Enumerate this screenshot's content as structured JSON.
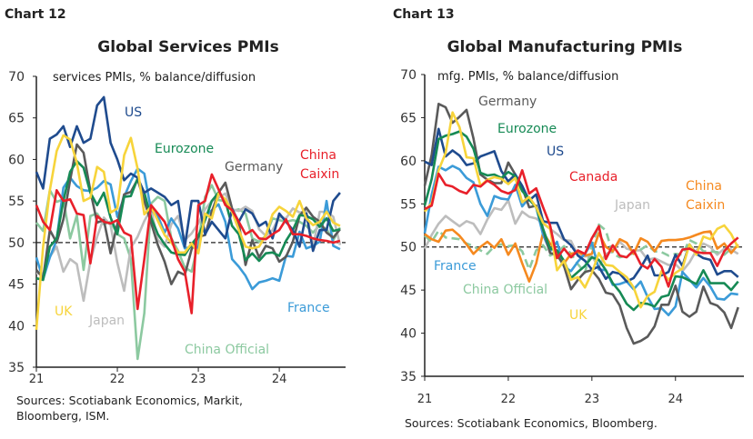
{
  "chart_data": [
    {
      "type": "line",
      "chart_number": "Chart 12",
      "title": "Global Services PMIs",
      "subtitle": "services PMIs, % balance/diffusion",
      "ylim": [
        35,
        70
      ],
      "yticks": [
        "70",
        "65",
        "60",
        "55",
        "50",
        "45",
        "40",
        "35"
      ],
      "xticks": [
        "21",
        "22",
        "23",
        "24"
      ],
      "reference_line": 50,
      "source": [
        "Sources: Scotiabank Economics, Markit,",
        "Bloomberg, ISM."
      ],
      "series": [
        {
          "name": "China Official",
          "color": "#8cc9a0",
          "dashed": false,
          "values": [
            52.4,
            51.4,
            56.3,
            54.9,
            55.2,
            50.5,
            53.3,
            46.7,
            53.2,
            53.5,
            52.2,
            52.5,
            51,
            50.5,
            48,
            36,
            41.5,
            54.7,
            55.5,
            55,
            50.5,
            49,
            47,
            46.5,
            50,
            55.5,
            56.9,
            55.1,
            55,
            53.8,
            54,
            53.5,
            50.5,
            50.1,
            50.8,
            52.9,
            52.7,
            52.5,
            52.7,
            52.5,
            52,
            51.2,
            52.1,
            51.6,
            50.3,
            51.8
          ]
        },
        {
          "name": "Japan",
          "color": "#bdbdbd",
          "dashed": false,
          "values": [
            46.3,
            46.3,
            48.3,
            49.5,
            46.5,
            48,
            47.4,
            43,
            47.8,
            50.7,
            53,
            52.1,
            47.6,
            44.2,
            49.4,
            50.7,
            52.6,
            54,
            50.3,
            49.5,
            52.2,
            53.2,
            50.3,
            51.1,
            52.3,
            54,
            55,
            55.4,
            55.9,
            54,
            53.8,
            54.3,
            53.8,
            51.6,
            50.8,
            51.5,
            53.1,
            52.9,
            54.1,
            53.6,
            53.8,
            49.4,
            53.7,
            53.7,
            53.1,
            49.7
          ]
        },
        {
          "name": "France",
          "color": "#3b9bd8",
          "dashed": false,
          "values": [
            48.2,
            45.6,
            48.2,
            50.3,
            56.6,
            57.8,
            56.8,
            56.3,
            56.2,
            56.6,
            57.4,
            57,
            53.1,
            55.5,
            57.4,
            58.9,
            58.3,
            53.9,
            53.2,
            51.2,
            52.9,
            51.7,
            49.3,
            49.5,
            49.4,
            53.1,
            53.9,
            54.6,
            52.5,
            48,
            47.1,
            46,
            44.4,
            45.2,
            45.4,
            45.7,
            45.4,
            48.4,
            48.3,
            51.3,
            49.3,
            49.6,
            50.1,
            55,
            49.6,
            49.2
          ]
        },
        {
          "name": "Germany",
          "color": "#5a5a5a",
          "dashed": false,
          "values": [
            46.7,
            45.7,
            51.5,
            50,
            52.8,
            57.5,
            61.8,
            60.8,
            56.2,
            52.4,
            52.7,
            48.7,
            52.2,
            55.8,
            56.1,
            57.6,
            55,
            52.4,
            49.7,
            47.7,
            45,
            46.5,
            46.1,
            49.2,
            50.7,
            50.9,
            53.7,
            56,
            57.2,
            54.1,
            52.3,
            47.3,
            50.3,
            48.2,
            49.6,
            49.3,
            47.7,
            48.3,
            50.1,
            53.2,
            54.2,
            53.1,
            52.5,
            51.2,
            50.6,
            51.6
          ]
        },
        {
          "name": "Eurozone",
          "color": "#168a55",
          "dashed": false,
          "values": [
            45.7,
            45.5,
            49.5,
            50.5,
            55,
            58.5,
            59.8,
            59,
            56,
            54.5,
            56,
            53,
            51,
            55.5,
            55.6,
            57.7,
            56,
            53,
            51,
            49.8,
            48.8,
            48.6,
            48.5,
            49.8,
            50.8,
            52.7,
            55,
            56,
            55,
            52,
            51,
            47.9,
            48.7,
            47.8,
            48.7,
            48.8,
            48.4,
            50.2,
            51.5,
            53.3,
            53.2,
            52.8,
            51.9,
            52.9,
            51.4,
            51.6
          ]
        },
        {
          "name": "US",
          "color": "#1f4b8e",
          "dashed": false,
          "values": [
            58.5,
            56.5,
            62.5,
            63,
            64,
            61.5,
            64,
            62,
            62.5,
            66.5,
            67.5,
            62,
            60,
            57.5,
            58.3,
            57.8,
            56,
            56.5,
            56,
            55.5,
            54.5,
            55,
            49.5,
            55,
            55,
            51,
            52.5,
            51.5,
            50.5,
            54,
            52.5,
            54,
            53.5,
            52,
            52.5,
            50.5,
            53.5,
            52.5,
            51.5,
            49.5,
            53.5,
            49,
            51.5,
            51.5,
            55,
            56
          ]
        },
        {
          "name": "UK",
          "color": "#f7d43b",
          "dashed": false,
          "values": [
            39.5,
            49.5,
            56.3,
            61,
            62.9,
            62.4,
            59.6,
            55,
            55.4,
            59.1,
            58.5,
            53.6,
            54.1,
            60.5,
            62.6,
            58.9,
            53.4,
            54.3,
            52.6,
            50.9,
            50,
            48.8,
            48.8,
            49.9,
            48.7,
            53.5,
            52.9,
            55.9,
            55.2,
            53.7,
            51.5,
            49.5,
            49.3,
            49.5,
            50.9,
            53.4,
            54.3,
            53.8,
            53.1,
            55,
            52.9,
            52.1,
            52.5,
            53.7,
            52.4,
            52
          ]
        },
        {
          "name": "China Caixin",
          "color": "#e8202a",
          "dashed": false,
          "values": [
            54.5,
            52.5,
            51.5,
            56.3,
            55,
            55.2,
            53.5,
            53.3,
            47.5,
            53.2,
            52.5,
            52.3,
            52.7,
            51.2,
            50.8,
            42,
            48,
            54.5,
            53.5,
            52.5,
            50.5,
            48,
            46.5,
            41.5,
            54.5,
            55,
            58.2,
            56.4,
            54.5,
            53.9,
            52.5,
            51,
            51.5,
            50.5,
            50.4,
            51,
            51.5,
            52.8,
            51,
            51,
            50.8,
            50.5,
            50.3,
            50.2,
            50,
            50.2
          ]
        }
      ]
    },
    {
      "type": "line",
      "chart_number": "Chart 13",
      "title": "Global Manufacturing PMIs",
      "subtitle": "mfg. PMIs, % balance/diffusion",
      "ylim": [
        35,
        70
      ],
      "yticks": [
        "70",
        "65",
        "60",
        "55",
        "50",
        "45",
        "40",
        "35"
      ],
      "xticks": [
        "21",
        "22",
        "23",
        "24"
      ],
      "reference_line": 50,
      "source": [
        "Sources: Scotiabank Economics, Bloomberg."
      ],
      "series": [
        {
          "name": "Japan",
          "color": "#bdbdbd",
          "dashed": false,
          "values": [
            49.8,
            51.4,
            52.7,
            53.6,
            53,
            52.4,
            53,
            52.7,
            51.5,
            53.2,
            54.5,
            54.3,
            55.4,
            52.7,
            54.1,
            53.5,
            53.3,
            52.7,
            52.1,
            51.5,
            50.8,
            50.7,
            49,
            48.9,
            48.9,
            47.7,
            49.2,
            49.5,
            50.6,
            49.8,
            49.6,
            49.6,
            48.5,
            48.7,
            48.3,
            47.9,
            48,
            47.2,
            48.2,
            49.6,
            50.4,
            50,
            49.1,
            49.8,
            49.7,
            49.2
          ]
        },
        {
          "name": "China Official",
          "color": "#8cc9a0",
          "dashed": true,
          "values": [
            51.3,
            50.6,
            51.9,
            51.1,
            51,
            50.9,
            50.4,
            50.1,
            49.6,
            49.2,
            50.1,
            50.3,
            50.1,
            50.2,
            49.5,
            47.4,
            49.6,
            50.2,
            49,
            49.4,
            50.1,
            49.2,
            48,
            47,
            50.1,
            52.6,
            51.9,
            49.2,
            48.8,
            49,
            49.3,
            49.7,
            50.2,
            49.5,
            49.4,
            49,
            49.2,
            49.1,
            50.8,
            50.4,
            49.5,
            49.5,
            49.4,
            49.1,
            49.8,
            50.1
          ]
        },
        {
          "name": "China Caixin",
          "color": "#f5891f",
          "dashed": false,
          "values": [
            51.5,
            50.9,
            50.6,
            51.9,
            52,
            51.3,
            50.3,
            49.2,
            50,
            50.6,
            49.9,
            50.9,
            49.1,
            50.4,
            48.1,
            46,
            48.1,
            51.7,
            50.4,
            49.5,
            48.1,
            49.2,
            49.4,
            49,
            49.2,
            51.6,
            50,
            49.5,
            50.9,
            50.5,
            49.2,
            51,
            50.6,
            49.5,
            50.7,
            50.8,
            50.8,
            50.9,
            51.1,
            51.4,
            51.7,
            51.8,
            49.8,
            50.4,
            49.3,
            50.3
          ]
        },
        {
          "name": "France",
          "color": "#3b9bd8",
          "dashed": false,
          "values": [
            51.6,
            56.1,
            59.3,
            58.9,
            59.4,
            59,
            58,
            57.5,
            55,
            53.6,
            55.9,
            55.6,
            55.5,
            57.2,
            54.7,
            55.7,
            54.6,
            51.4,
            49.5,
            50.6,
            47.7,
            47.2,
            48.3,
            49.2,
            50.5,
            47.4,
            47.3,
            45.6,
            45.7,
            46,
            45.1,
            46,
            44.2,
            42.8,
            42.9,
            42.1,
            43.1,
            47.1,
            46.2,
            45.3,
            46.4,
            45.4,
            44,
            43.9,
            44.6,
            44.5
          ]
        },
        {
          "name": "Germany",
          "color": "#5a5a5a",
          "dashed": false,
          "values": [
            57.1,
            60.7,
            66.6,
            66.2,
            64.4,
            65.1,
            65.9,
            62.6,
            58.4,
            57.8,
            57.4,
            57.4,
            59.8,
            58.4,
            56.9,
            54.6,
            54.8,
            52,
            49.3,
            49.1,
            47.8,
            45.1,
            46.2,
            47.1,
            47.3,
            46.3,
            44.7,
            44.5,
            43.2,
            40.6,
            38.8,
            39.1,
            39.6,
            40.8,
            43.3,
            43.3,
            45.5,
            42.5,
            41.9,
            42.5,
            45.4,
            43.5,
            43.2,
            42.4,
            40.6,
            43
          ]
        },
        {
          "name": "US",
          "color": "#1f4b8e",
          "dashed": false,
          "values": [
            59.9,
            59.5,
            63.7,
            60.5,
            61.2,
            60.6,
            59.5,
            59.7,
            60.5,
            60.8,
            61.1,
            58.8,
            57.6,
            58.4,
            57.1,
            55.4,
            56.1,
            53,
            52.8,
            52.8,
            50.9,
            50.2,
            49,
            48.4,
            47.4,
            47.7,
            46.3,
            47.1,
            46.9,
            46,
            46.4,
            47.6,
            49,
            46.7,
            46.7,
            47.1,
            49.1,
            47.8,
            50.3,
            49.2,
            48.7,
            48.5,
            46.8,
            47.2,
            47.2,
            46.5
          ]
        },
        {
          "name": "Eurozone",
          "color": "#168a55",
          "dashed": false,
          "values": [
            54.8,
            57.9,
            62.5,
            62.9,
            63.1,
            63.4,
            62.8,
            61.4,
            58.6,
            58.3,
            58.4,
            58,
            58.7,
            58.2,
            56.5,
            55.5,
            54.6,
            52.1,
            49.8,
            49.6,
            48.4,
            46.4,
            47.1,
            47.8,
            48.8,
            48.5,
            47.3,
            45.8,
            44.8,
            43.4,
            42.7,
            43.5,
            43.4,
            43.1,
            44.2,
            44.4,
            46.6,
            46.5,
            46.1,
            45.7,
            47.3,
            45.8,
            45.8,
            45.8,
            45,
            46
          ]
        },
        {
          "name": "UK",
          "color": "#f7d43b",
          "dashed": false,
          "values": [
            54.1,
            55.1,
            58.9,
            60.9,
            65.6,
            63.9,
            60.4,
            60.3,
            57.1,
            57.8,
            58.1,
            57.9,
            57.3,
            58,
            55.2,
            55.8,
            54.6,
            52.8,
            52.1,
            47.3,
            48.4,
            46.2,
            46.5,
            45.3,
            47,
            49.3,
            47.9,
            47.8,
            47.1,
            46.5,
            45.3,
            43,
            44.3,
            44.8,
            47.2,
            46.2,
            47,
            47.5,
            50.3,
            49.1,
            51.2,
            50.9,
            52.1,
            52.5,
            51.5,
            49.9
          ]
        },
        {
          "name": "Canada",
          "color": "#e8202a",
          "dashed": false,
          "values": [
            54.4,
            54.8,
            58.5,
            57.2,
            57,
            56.5,
            56.2,
            57.2,
            57,
            57.7,
            57.2,
            56.5,
            56.2,
            56.6,
            58.9,
            56.2,
            56.8,
            54.6,
            52.5,
            48.7,
            49.8,
            48.8,
            49.6,
            49.2,
            51,
            52.4,
            48.6,
            50.2,
            49,
            48.8,
            49.6,
            48,
            47.5,
            48.6,
            47.7,
            45.4,
            48.3,
            49.7,
            49.8,
            49.4,
            49.3,
            49.3,
            47.8,
            49.5,
            50.4,
            51.1
          ]
        }
      ]
    }
  ],
  "x_months": [
    "2021-01",
    "2021-02",
    "2021-03",
    "2021-04",
    "2021-05",
    "2021-06",
    "2021-07",
    "2021-08",
    "2021-09",
    "2021-10",
    "2021-11",
    "2021-12",
    "2022-01",
    "2022-02",
    "2022-03",
    "2022-04",
    "2022-05",
    "2022-06",
    "2022-07",
    "2022-08",
    "2022-09",
    "2022-10",
    "2022-11",
    "2022-12",
    "2023-01",
    "2023-02",
    "2023-03",
    "2023-04",
    "2023-05",
    "2023-06",
    "2023-07",
    "2023-08",
    "2023-09",
    "2023-10",
    "2023-11",
    "2023-12",
    "2024-01",
    "2024-02",
    "2024-03",
    "2024-04",
    "2024-05",
    "2024-06",
    "2024-07",
    "2024-08",
    "2024-09",
    "2024-10"
  ]
}
